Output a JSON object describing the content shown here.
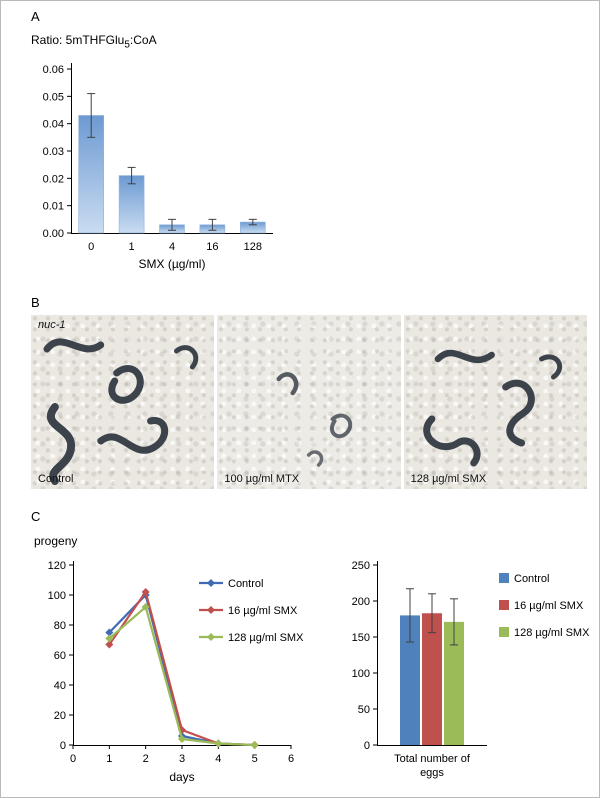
{
  "panels": {
    "a": {
      "label": "A",
      "title_pre": "Ratio: 5mTHFGlu",
      "title_sub": "5",
      "title_post": ":CoA"
    },
    "b": {
      "label": "B",
      "strain": "nuc-1",
      "captions": [
        "Control",
        "100 µg/ml MTX",
        "128 µg/ml SMX"
      ]
    },
    "c": {
      "label": "C"
    }
  },
  "chart_data": [
    {
      "id": "folate-ratio-bars",
      "type": "bar",
      "title": "Ratio: 5mTHFGlu5:CoA",
      "xlabel": "SMX (µg/ml)",
      "categories": [
        "0",
        "1",
        "4",
        "16",
        "128"
      ],
      "values": [
        0.043,
        0.021,
        0.003,
        0.003,
        0.004
      ],
      "errors": [
        0.008,
        0.003,
        0.002,
        0.002,
        0.001
      ],
      "ylim": [
        0,
        0.06
      ],
      "ytick_step": 0.01,
      "bar_color_top": "#6d9ad2",
      "bar_color_bottom": "#c9dcf1"
    },
    {
      "id": "progeny-per-day",
      "type": "line",
      "title": "progeny",
      "xlabel": "days",
      "x": [
        1,
        2,
        3,
        4,
        5
      ],
      "series": [
        {
          "name": "Control",
          "color": "#3f6cb4",
          "values": [
            75,
            100,
            6,
            1,
            0
          ]
        },
        {
          "name": "16 µg/ml SMX",
          "color": "#c0504d",
          "values": [
            67,
            102,
            10,
            1,
            0
          ]
        },
        {
          "name": "128 µg/ml SMX",
          "color": "#9bbb59",
          "values": [
            71,
            92,
            4,
            1,
            0
          ]
        }
      ],
      "xlim": [
        0,
        6
      ],
      "ylim": [
        0,
        120
      ],
      "ytick_step": 20,
      "legend_position": "top-right-inside"
    },
    {
      "id": "total-eggs-bars",
      "type": "bar",
      "categories": [
        "Total number of eggs"
      ],
      "series": [
        {
          "name": "Control",
          "color": "#4f81bd",
          "value": 180,
          "error": 37
        },
        {
          "name": "16 µg/ml SMX",
          "color": "#c0504d",
          "value": 183,
          "error": 27
        },
        {
          "name": "128 µg/ml SMX",
          "color": "#9bbb59",
          "value": 171,
          "error": 32
        }
      ],
      "ylim": [
        0,
        250
      ],
      "ytick_step": 50,
      "legend_position": "right"
    }
  ]
}
